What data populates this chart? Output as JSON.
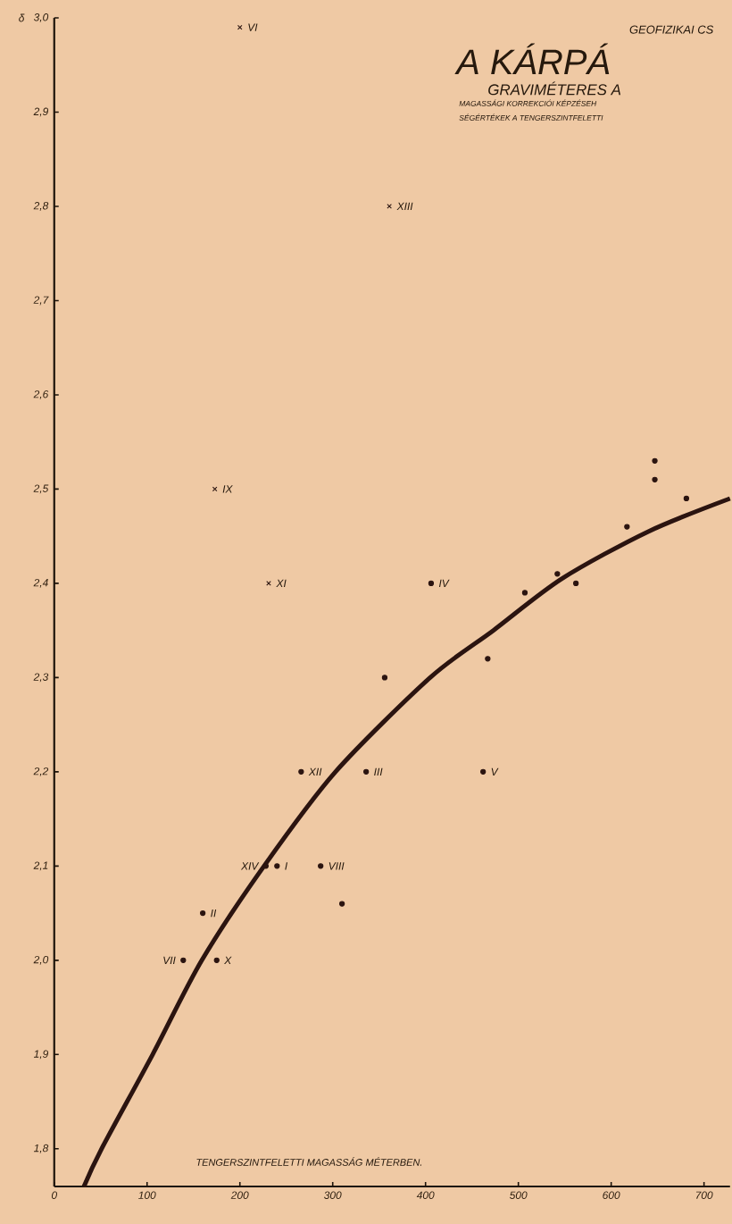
{
  "chart_data": {
    "type": "scatter",
    "title": "A KÁRPÁ",
    "subtitle": "GEOFIZIKAI CS",
    "xlabel": "TENGERSZINTFELETTI MAGASSÁG MÉTERBEN.",
    "ylabel": "δ",
    "annotations": [
      "GRAVIMÉTERES A",
      "MAGASSÁGI KORREKCIÓI KÉPZÉSEH",
      "SÉGÉRTÉKEK A TENGERSZINTFELETTI"
    ],
    "xlim": [
      0,
      728
    ],
    "ylim": [
      1.76,
      3.0
    ],
    "xticks": [
      0,
      100,
      200,
      300,
      400,
      500,
      600,
      700
    ],
    "yticks": [
      {
        "value": 1.8,
        "label": "1,8"
      },
      {
        "value": 1.9,
        "label": "1,9"
      },
      {
        "value": 2.0,
        "label": "2,0"
      },
      {
        "value": 2.1,
        "label": "2,1"
      },
      {
        "value": 2.2,
        "label": "2,2"
      },
      {
        "value": 2.3,
        "label": "2,3"
      },
      {
        "value": 2.4,
        "label": "2,4"
      },
      {
        "value": 2.5,
        "label": "2,5"
      },
      {
        "value": 2.6,
        "label": "2,6"
      },
      {
        "value": 2.7,
        "label": "2,7"
      },
      {
        "value": 2.8,
        "label": "2,8"
      },
      {
        "value": 2.9,
        "label": "2,9"
      },
      {
        "value": 3.0,
        "label": "3,0"
      }
    ],
    "grid": false,
    "series": [
      {
        "marker": "circle",
        "color": "#2b1410",
        "x": [
          406,
          266,
          336,
          462,
          228,
          240,
          287,
          160,
          139,
          175,
          356,
          310,
          467,
          507,
          542,
          562,
          617,
          647,
          647,
          681
        ],
        "values": [
          2.4,
          2.2,
          2.2,
          2.2,
          2.1,
          2.1,
          2.1,
          2.05,
          2.0,
          2.0,
          2.3,
          2.06,
          2.32,
          2.39,
          2.41,
          2.4,
          2.46,
          2.51,
          2.53,
          2.49
        ],
        "value_labels": [
          "IV",
          "XII",
          "III",
          "V",
          "XIV",
          "I",
          "VIII",
          "II",
          "VII",
          "X",
          null,
          null,
          null,
          null,
          null,
          null,
          null,
          null,
          null,
          null
        ]
      },
      {
        "marker": "cross",
        "color": "#2b1410",
        "x": [
          200,
          361,
          173,
          231
        ],
        "values": [
          2.99,
          2.8,
          2.5,
          2.4
        ],
        "value_labels": [
          "VI",
          "XIII",
          "IX",
          "XI"
        ]
      },
      {
        "type": "line",
        "marker": "none",
        "color": "#2b1410",
        "x": [
          32,
          51,
          106,
          159,
          226,
          303,
          405,
          473,
          547,
          640,
          728
        ],
        "values": [
          1.76,
          1.8,
          1.9,
          2.0,
          2.1,
          2.2,
          2.3,
          2.35,
          2.405,
          2.455,
          2.49
        ]
      }
    ]
  }
}
